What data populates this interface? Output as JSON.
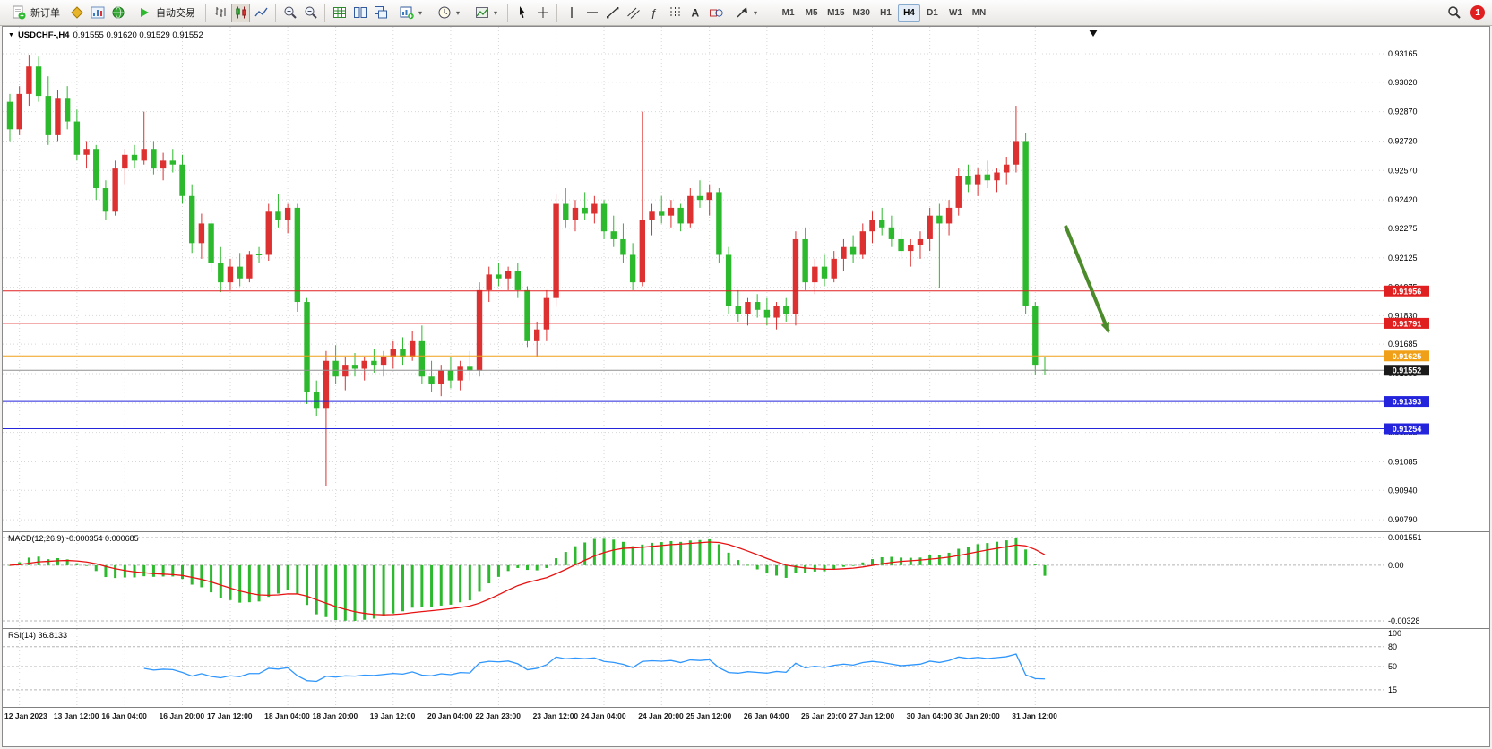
{
  "toolbar": {
    "new_order": "新订单",
    "auto_trading": "自动交易",
    "timeframes": [
      "M1",
      "M5",
      "M15",
      "M30",
      "H1",
      "H4",
      "D1",
      "W1",
      "MN"
    ],
    "active_timeframe": "H4",
    "notification_badge": "1"
  },
  "chart": {
    "symbol_label": "USDCHF-,H4",
    "ohlc_text": "0.91555 0.91620 0.91529 0.91552"
  },
  "chart_data": {
    "type": "candlestick",
    "symbol": "USDCHF",
    "timeframe": "H4",
    "colors": {
      "bull": "#dd3030",
      "bear": "#2db92d"
    },
    "price_axis_ticks": [
      0.93165,
      0.9302,
      0.9287,
      0.9272,
      0.9257,
      0.9242,
      0.92275,
      0.92125,
      0.91975,
      0.9183,
      0.91685,
      0.91535,
      0.91385,
      0.91235,
      0.91085,
      0.9094,
      0.9079
    ],
    "time_axis_labels": [
      "12 Jan 2023",
      "13 Jan 12:00",
      "16 Jan 04:00",
      "16 Jan 20:00",
      "17 Jan 12:00",
      "18 Jan 04:00",
      "18 Jan 20:00",
      "19 Jan 12:00",
      "20 Jan 04:00",
      "22 Jan 23:00",
      "23 Jan 12:00",
      "24 Jan 04:00",
      "24 Jan 20:00",
      "25 Jan 12:00",
      "26 Jan 04:00",
      "26 Jan 20:00",
      "27 Jan 12:00",
      "30 Jan 04:00",
      "30 Jan 20:00",
      "31 Jan 12:00"
    ],
    "candles": [
      [
        0.9292,
        0.9296,
        0.9272,
        0.9278
      ],
      [
        0.9278,
        0.93,
        0.9275,
        0.9296
      ],
      [
        0.9296,
        0.9316,
        0.929,
        0.931
      ],
      [
        0.931,
        0.9315,
        0.9292,
        0.9295
      ],
      [
        0.9295,
        0.9305,
        0.927,
        0.9275
      ],
      [
        0.9275,
        0.9298,
        0.9272,
        0.9294
      ],
      [
        0.9294,
        0.93,
        0.9278,
        0.9282
      ],
      [
        0.9282,
        0.9288,
        0.9262,
        0.9265
      ],
      [
        0.9265,
        0.9272,
        0.9258,
        0.9268
      ],
      [
        0.9268,
        0.927,
        0.9242,
        0.9248
      ],
      [
        0.9248,
        0.9252,
        0.9232,
        0.9236
      ],
      [
        0.9236,
        0.9262,
        0.9234,
        0.9258
      ],
      [
        0.9258,
        0.9268,
        0.925,
        0.9265
      ],
      [
        0.9265,
        0.927,
        0.9258,
        0.9262
      ],
      [
        0.9262,
        0.9287,
        0.926,
        0.9268
      ],
      [
        0.9268,
        0.9272,
        0.9255,
        0.9258
      ],
      [
        0.9258,
        0.9266,
        0.9252,
        0.9262
      ],
      [
        0.9262,
        0.9268,
        0.9256,
        0.926
      ],
      [
        0.926,
        0.9265,
        0.924,
        0.9244
      ],
      [
        0.9244,
        0.925,
        0.9215,
        0.922
      ],
      [
        0.922,
        0.9235,
        0.9212,
        0.923
      ],
      [
        0.923,
        0.9232,
        0.9205,
        0.921
      ],
      [
        0.921,
        0.9218,
        0.9195,
        0.92
      ],
      [
        0.92,
        0.9212,
        0.9196,
        0.9208
      ],
      [
        0.9208,
        0.9215,
        0.9198,
        0.9202
      ],
      [
        0.9202,
        0.9216,
        0.92,
        0.9214
      ],
      [
        0.9214,
        0.9218,
        0.921,
        0.9214
      ],
      [
        0.9214,
        0.924,
        0.9211,
        0.9236
      ],
      [
        0.9236,
        0.9245,
        0.9228,
        0.9232
      ],
      [
        0.9232,
        0.924,
        0.9225,
        0.9238
      ],
      [
        0.9238,
        0.924,
        0.9185,
        0.919
      ],
      [
        0.919,
        0.9192,
        0.9138,
        0.9144
      ],
      [
        0.9144,
        0.915,
        0.9132,
        0.9136
      ],
      [
        0.9136,
        0.9165,
        0.9096,
        0.916
      ],
      [
        0.916,
        0.9168,
        0.9148,
        0.9152
      ],
      [
        0.9152,
        0.9162,
        0.9145,
        0.9158
      ],
      [
        0.9158,
        0.9164,
        0.9152,
        0.9156
      ],
      [
        0.9156,
        0.9162,
        0.915,
        0.916
      ],
      [
        0.916,
        0.9166,
        0.9154,
        0.9158
      ],
      [
        0.9158,
        0.9165,
        0.9152,
        0.9162
      ],
      [
        0.9162,
        0.917,
        0.9156,
        0.9166
      ],
      [
        0.9166,
        0.9172,
        0.9158,
        0.9162
      ],
      [
        0.9162,
        0.9175,
        0.916,
        0.917
      ],
      [
        0.917,
        0.9178,
        0.9148,
        0.9152
      ],
      [
        0.9152,
        0.916,
        0.9144,
        0.9148
      ],
      [
        0.9148,
        0.9158,
        0.9142,
        0.9155
      ],
      [
        0.9155,
        0.9162,
        0.9146,
        0.915
      ],
      [
        0.915,
        0.916,
        0.9145,
        0.9157
      ],
      [
        0.9157,
        0.9165,
        0.915,
        0.9155
      ],
      [
        0.9155,
        0.92,
        0.9152,
        0.9196
      ],
      [
        0.9196,
        0.9208,
        0.919,
        0.9204
      ],
      [
        0.9204,
        0.921,
        0.9198,
        0.9202
      ],
      [
        0.9202,
        0.9208,
        0.9196,
        0.9206
      ],
      [
        0.9206,
        0.921,
        0.9192,
        0.9196
      ],
      [
        0.9196,
        0.9198,
        0.9167,
        0.917
      ],
      [
        0.917,
        0.918,
        0.9162,
        0.9176
      ],
      [
        0.9176,
        0.9196,
        0.917,
        0.9192
      ],
      [
        0.9192,
        0.9245,
        0.9188,
        0.924
      ],
      [
        0.924,
        0.9248,
        0.9228,
        0.9232
      ],
      [
        0.9232,
        0.9242,
        0.9226,
        0.9238
      ],
      [
        0.9238,
        0.9246,
        0.9232,
        0.9235
      ],
      [
        0.9235,
        0.9244,
        0.923,
        0.924
      ],
      [
        0.924,
        0.9242,
        0.9222,
        0.9226
      ],
      [
        0.9226,
        0.9234,
        0.9218,
        0.9222
      ],
      [
        0.9222,
        0.923,
        0.921,
        0.9214
      ],
      [
        0.9214,
        0.922,
        0.9196,
        0.92
      ],
      [
        0.92,
        0.9287,
        0.9198,
        0.9232
      ],
      [
        0.9232,
        0.924,
        0.9224,
        0.9236
      ],
      [
        0.9236,
        0.9244,
        0.923,
        0.9234
      ],
      [
        0.9234,
        0.9242,
        0.9228,
        0.9238
      ],
      [
        0.9238,
        0.924,
        0.9226,
        0.923
      ],
      [
        0.923,
        0.9248,
        0.9228,
        0.9244
      ],
      [
        0.9244,
        0.9252,
        0.9238,
        0.9242
      ],
      [
        0.9242,
        0.925,
        0.9234,
        0.9246
      ],
      [
        0.9246,
        0.9248,
        0.921,
        0.9214
      ],
      [
        0.9214,
        0.9218,
        0.9184,
        0.9188
      ],
      [
        0.9188,
        0.9196,
        0.918,
        0.9184
      ],
      [
        0.9184,
        0.9192,
        0.9178,
        0.919
      ],
      [
        0.919,
        0.9194,
        0.9182,
        0.9186
      ],
      [
        0.9186,
        0.9192,
        0.9178,
        0.9182
      ],
      [
        0.9182,
        0.919,
        0.9176,
        0.9188
      ],
      [
        0.9188,
        0.9192,
        0.918,
        0.9184
      ],
      [
        0.9184,
        0.9226,
        0.9178,
        0.9222
      ],
      [
        0.9222,
        0.9228,
        0.9196,
        0.92
      ],
      [
        0.92,
        0.9212,
        0.9194,
        0.9208
      ],
      [
        0.9208,
        0.9214,
        0.9198,
        0.9202
      ],
      [
        0.9202,
        0.9216,
        0.92,
        0.9212
      ],
      [
        0.9212,
        0.9222,
        0.9206,
        0.9218
      ],
      [
        0.9218,
        0.9224,
        0.921,
        0.9214
      ],
      [
        0.9214,
        0.923,
        0.9212,
        0.9226
      ],
      [
        0.9226,
        0.9236,
        0.922,
        0.9232
      ],
      [
        0.9232,
        0.9238,
        0.9224,
        0.9228
      ],
      [
        0.9228,
        0.9234,
        0.9218,
        0.9222
      ],
      [
        0.9222,
        0.9228,
        0.9212,
        0.9216
      ],
      [
        0.9216,
        0.9222,
        0.9208,
        0.9219
      ],
      [
        0.9219,
        0.9226,
        0.9212,
        0.9222
      ],
      [
        0.9222,
        0.9238,
        0.9216,
        0.9234
      ],
      [
        0.9234,
        0.924,
        0.9197,
        0.923
      ],
      [
        0.923,
        0.9242,
        0.9224,
        0.9238
      ],
      [
        0.9238,
        0.9258,
        0.9234,
        0.9254
      ],
      [
        0.9254,
        0.926,
        0.9246,
        0.925
      ],
      [
        0.925,
        0.9258,
        0.9244,
        0.9255
      ],
      [
        0.9255,
        0.9262,
        0.9248,
        0.9252
      ],
      [
        0.9252,
        0.9258,
        0.9246,
        0.9256
      ],
      [
        0.9256,
        0.9264,
        0.925,
        0.926
      ],
      [
        0.926,
        0.929,
        0.9256,
        0.9272
      ],
      [
        0.9272,
        0.9276,
        0.9184,
        0.9188
      ],
      [
        0.9188,
        0.919,
        0.9153,
        0.9158
      ],
      [
        0.91555,
        0.9162,
        0.91529,
        0.91552
      ]
    ],
    "horizontal_lines": [
      {
        "price": 0.91956,
        "label": "0.91956",
        "color": "#e02020"
      },
      {
        "price": 0.91791,
        "label": "0.91791",
        "color": "#e02020"
      },
      {
        "price": 0.91625,
        "label": "0.91625",
        "color": "#f0a018"
      },
      {
        "price": 0.91552,
        "label": "0.91552",
        "color": "#909090",
        "label_bg": "#1a1a1a"
      },
      {
        "price": 0.91393,
        "label": "0.91393",
        "color": "#2424dd"
      },
      {
        "price": 0.91254,
        "label": "0.91254",
        "color": "#2424dd"
      }
    ],
    "current_price": "0.91552",
    "annotation_arrow": {
      "direction": "down-right",
      "color": "#4c8b2b"
    },
    "macd": {
      "label": "MACD(12,26,9) -0.000354 0.000685",
      "axis_labels": [
        "0.001551",
        "0.00",
        "-0.00328"
      ],
      "histogram_color": "#2db92d",
      "signal_color": "#e81212"
    },
    "rsi": {
      "label": "RSI(14) 36.8133",
      "axis_labels": [
        "100",
        "80",
        "50",
        "15"
      ],
      "levels": [
        80,
        50,
        15
      ],
      "line_color": "#2f96ff"
    }
  }
}
